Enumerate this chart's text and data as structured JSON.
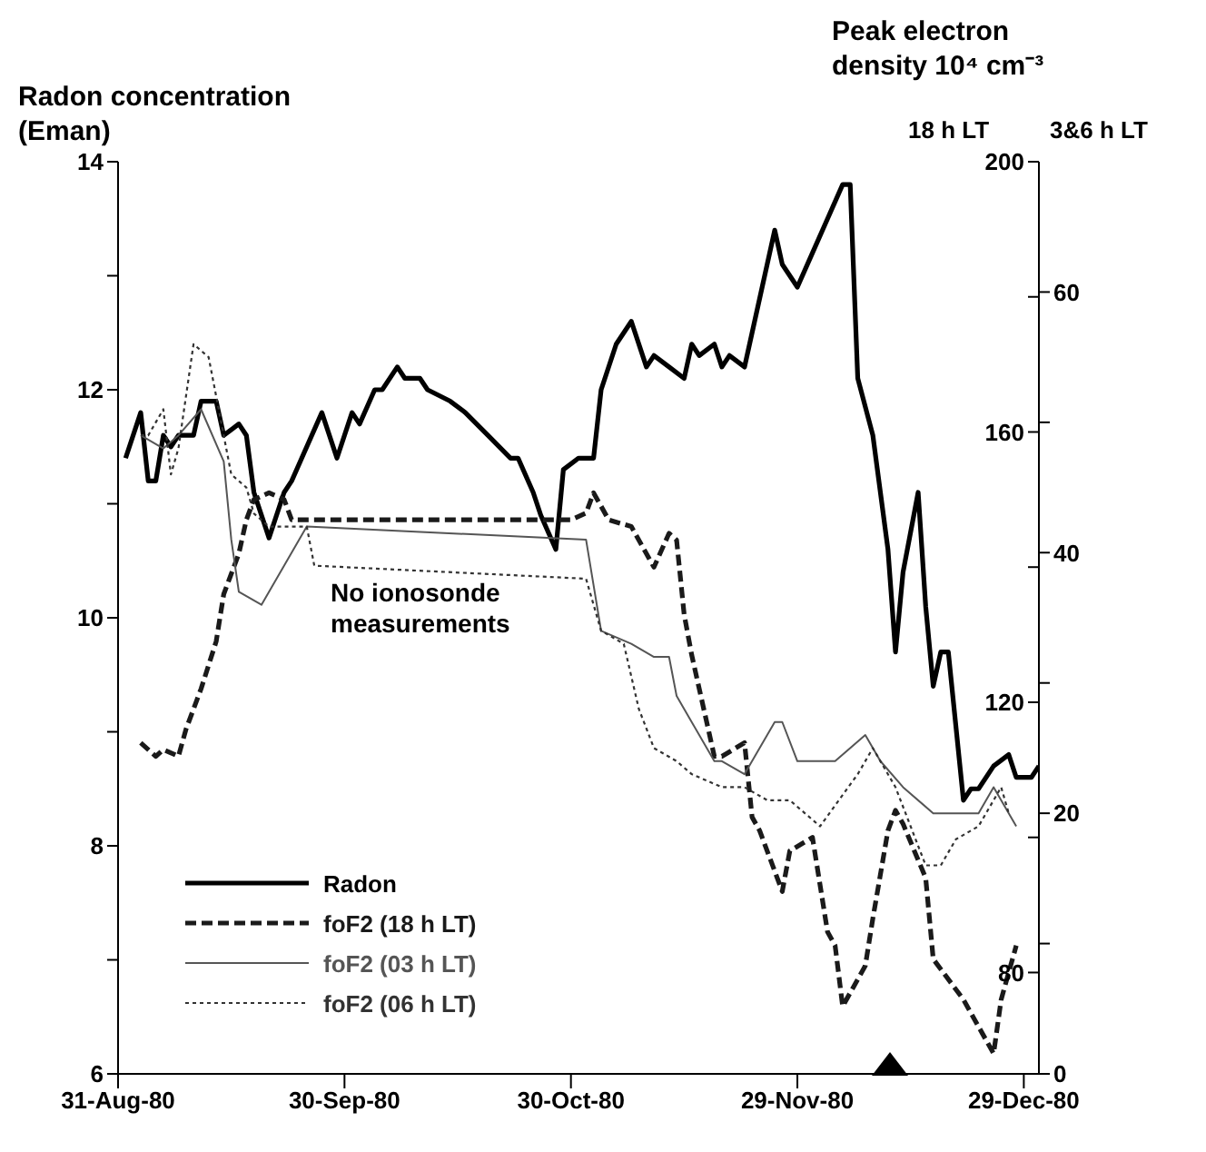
{
  "chart_data": {
    "type": "line",
    "ylabel": "Radon concentration (Eman)",
    "y2label": "18 h LT",
    "y3label": "3&6 h LT",
    "annotations": [
      "Peak electron density 10⁴ cm⁻³",
      "No ionosonde measurements"
    ],
    "xlim": [
      "1980-08-31",
      "1980-12-31"
    ],
    "xticks": [
      {
        "value": "1980-08-31",
        "label": "31-Aug-80"
      },
      {
        "value": "1980-09-30",
        "label": "30-Sep-80"
      },
      {
        "value": "1980-10-30",
        "label": "30-Oct-80"
      },
      {
        "value": "1980-11-29",
        "label": "29-Nov-80"
      },
      {
        "value": "1980-12-29",
        "label": "29-Dec-80"
      }
    ],
    "ylim": [
      6,
      14
    ],
    "yticks": [
      6,
      {
        "value": 7,
        "label": null
      },
      8,
      {
        "value": 9,
        "label": null
      },
      10,
      {
        "value": 11,
        "label": null
      },
      12,
      {
        "value": 13,
        "label": null
      },
      14
    ],
    "y2lim": [
      65,
      200
    ],
    "y2ticks": [
      80,
      {
        "value": 100,
        "label": null
      },
      120,
      {
        "value": 140,
        "label": null
      },
      160,
      {
        "value": 180,
        "label": null
      },
      200
    ],
    "y3lim": [
      0,
      70
    ],
    "y3ticks": [
      0,
      {
        "value": 10,
        "label": null
      },
      20,
      {
        "value": 30,
        "label": null
      },
      40,
      {
        "value": 50,
        "label": null
      },
      60
    ],
    "legend": "bottom left",
    "grid": false,
    "marker": "none",
    "series": [
      {
        "name": "Radon",
        "color": "#000000",
        "line_style": "solid",
        "axis": "y",
        "x": [
          "1980-09-01",
          "1980-09-03",
          "1980-09-04",
          "1980-09-05",
          "1980-09-06",
          "1980-09-07",
          "1980-09-08",
          "1980-09-10",
          "1980-09-11",
          "1980-09-13",
          "1980-09-14",
          "1980-09-16",
          "1980-09-17",
          "1980-09-18",
          "1980-09-20",
          "1980-09-22",
          "1980-09-23",
          "1980-09-27",
          "1980-09-29",
          "1980-10-01",
          "1980-10-02",
          "1980-10-04",
          "1980-10-05",
          "1980-10-07",
          "1980-10-08",
          "1980-10-10",
          "1980-10-11",
          "1980-10-14",
          "1980-10-16",
          "1980-10-19",
          "1980-10-22",
          "1980-10-23",
          "1980-10-25",
          "1980-10-26",
          "1980-10-28",
          "1980-10-29",
          "1980-10-31",
          "1980-11-02",
          "1980-11-03",
          "1980-11-05",
          "1980-11-07",
          "1980-11-09",
          "1980-11-10",
          "1980-11-12",
          "1980-11-14",
          "1980-11-15",
          "1980-11-16",
          "1980-11-18",
          "1980-11-19",
          "1980-11-20",
          "1980-11-22",
          "1980-11-24",
          "1980-11-26",
          "1980-11-27",
          "1980-11-29",
          "1980-12-01",
          "1980-12-03",
          "1980-12-05",
          "1980-12-06",
          "1980-12-07",
          "1980-12-09",
          "1980-12-11",
          "1980-12-12",
          "1980-12-13",
          "1980-12-15",
          "1980-12-16",
          "1980-12-17",
          "1980-12-18",
          "1980-12-19",
          "1980-12-21",
          "1980-12-22",
          "1980-12-23",
          "1980-12-25",
          "1980-12-27",
          "1980-12-28",
          "1980-12-30",
          "1980-12-31"
        ],
        "values": [
          11.4,
          11.8,
          11.2,
          11.2,
          11.6,
          11.5,
          11.6,
          11.6,
          11.9,
          11.9,
          11.6,
          11.7,
          11.6,
          11.1,
          10.7,
          11.1,
          11.2,
          11.8,
          11.4,
          11.8,
          11.7,
          12.0,
          12.0,
          12.2,
          12.1,
          12.1,
          12.0,
          11.9,
          11.8,
          11.6,
          11.4,
          11.4,
          11.1,
          10.9,
          10.6,
          11.3,
          11.4,
          11.4,
          12.0,
          12.4,
          12.6,
          12.2,
          12.3,
          12.2,
          12.1,
          12.4,
          12.3,
          12.4,
          12.2,
          12.3,
          12.2,
          12.8,
          13.4,
          13.1,
          12.9,
          13.2,
          13.5,
          13.8,
          13.8,
          12.1,
          11.6,
          10.6,
          9.7,
          10.4,
          11.1,
          10.1,
          9.4,
          9.7,
          9.7,
          8.4,
          8.5,
          8.5,
          8.7,
          8.8,
          8.6,
          8.6,
          8.7
        ]
      },
      {
        "name": "foF2 (18 h LT)",
        "color": "#1a1a1a",
        "line_style": "dashed",
        "axis": "y2",
        "x": [
          "1980-09-03",
          "1980-09-05",
          "1980-09-06",
          "1980-09-08",
          "1980-09-09",
          "1980-09-11",
          "1980-09-13",
          "1980-09-14",
          "1980-09-16",
          "1980-09-17",
          "1980-09-18",
          "1980-09-20",
          "1980-09-22",
          "1980-09-23",
          "1980-09-27",
          "1980-10-30",
          "1980-11-01",
          "1980-11-02",
          "1980-11-04",
          "1980-11-07",
          "1980-11-10",
          "1980-11-12",
          "1980-11-13",
          "1980-11-14",
          "1980-11-15",
          "1980-11-18",
          "1980-11-19",
          "1980-11-22",
          "1980-11-23",
          "1980-11-24",
          "1980-11-27",
          "1980-11-28",
          "1980-12-01",
          "1980-12-03",
          "1980-12-04",
          "1980-12-05",
          "1980-12-08",
          "1980-12-09",
          "1980-12-11",
          "1980-12-12",
          "1980-12-13",
          "1980-12-16",
          "1980-12-17",
          "1980-12-21",
          "1980-12-23",
          "1980-12-25",
          "1980-12-26",
          "1980-12-28"
        ],
        "values": [
          114,
          112,
          113,
          112,
          116,
          122,
          129,
          136,
          142,
          147,
          150,
          151,
          150,
          147,
          147,
          147,
          148,
          151,
          147,
          146,
          140,
          145,
          144,
          133,
          127,
          112,
          112,
          114,
          103,
          101,
          92,
          98,
          100,
          86,
          84,
          75,
          81,
          88,
          101,
          104,
          102,
          94,
          82,
          76,
          72,
          68,
          76,
          84
        ]
      },
      {
        "name": "foF2 (03 h LT)",
        "color": "#555555",
        "line_style": "solid",
        "axis": "y3",
        "x": [
          "1980-09-03",
          "1980-09-06",
          "1980-09-08",
          "1980-09-11",
          "1980-09-14",
          "1980-09-15",
          "1980-09-16",
          "1980-09-19",
          "1980-09-21",
          "1980-09-25",
          "1980-11-01",
          "1980-11-03",
          "1980-11-07",
          "1980-11-10",
          "1980-11-12",
          "1980-11-13",
          "1980-11-15",
          "1980-11-18",
          "1980-11-19",
          "1980-11-22",
          "1980-11-26",
          "1980-11-27",
          "1980-11-29",
          "1980-12-03",
          "1980-12-04",
          "1980-12-08",
          "1980-12-10",
          "1980-12-13",
          "1980-12-17",
          "1980-12-23",
          "1980-12-25",
          "1980-12-28"
        ],
        "values": [
          49,
          48,
          49,
          51,
          47,
          41,
          37,
          36,
          38,
          42,
          41,
          34,
          33,
          32,
          32,
          29,
          27,
          24,
          24,
          23,
          27,
          27,
          24,
          24,
          24,
          26,
          24,
          22,
          20,
          20,
          22,
          19
        ]
      },
      {
        "name": "foF2 (06 h LT)",
        "color": "#333333",
        "line_style": "dotted",
        "axis": "y3",
        "x": [
          "1980-09-03",
          "1980-09-04",
          "1980-09-06",
          "1980-09-07",
          "1980-09-08",
          "1980-09-10",
          "1980-09-12",
          "1980-09-13",
          "1980-09-15",
          "1980-09-17",
          "1980-09-18",
          "1980-09-20",
          "1980-09-23",
          "1980-09-25",
          "1980-09-26",
          "1980-11-01",
          "1980-11-03",
          "1980-11-06",
          "1980-11-08",
          "1980-11-10",
          "1980-11-13",
          "1980-11-15",
          "1980-11-19",
          "1980-11-22",
          "1980-11-25",
          "1980-11-28",
          "1980-12-02",
          "1980-12-07",
          "1980-12-09",
          "1980-12-12",
          "1980-12-14",
          "1980-12-16",
          "1980-12-18",
          "1980-12-20",
          "1980-12-23",
          "1980-12-26",
          "1980-12-27"
        ],
        "values": [
          49,
          49,
          51,
          46,
          48,
          56,
          55,
          52,
          46,
          45,
          43,
          42,
          42,
          42,
          39,
          38,
          34,
          33,
          28,
          25,
          24,
          23,
          22,
          22,
          21,
          21,
          19,
          23,
          25,
          22,
          19,
          16,
          16,
          18,
          19,
          22,
          20
        ]
      }
    ]
  }
}
